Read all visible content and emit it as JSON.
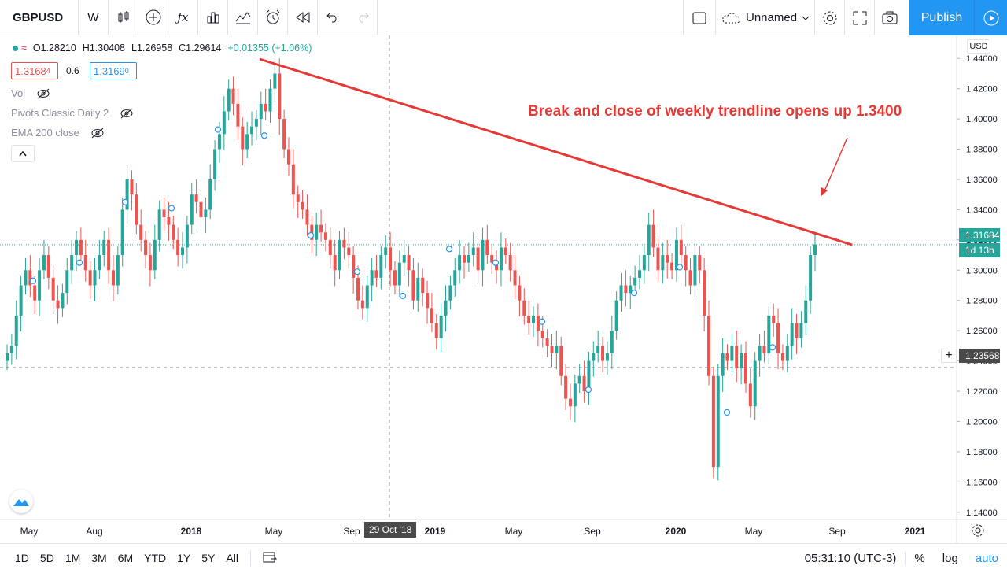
{
  "toolbar": {
    "symbol": "GBPUSD",
    "interval": "W",
    "layout_name": "Unnamed",
    "publish_label": "Publish",
    "icons": [
      "candles-icon",
      "add-indicator-icon",
      "fx-icon",
      "bar-chart-icon",
      "compare-icon",
      "alert-icon",
      "replay-icon",
      "undo-icon",
      "redo-icon",
      "fullscreen-square-icon",
      "cloud-icon",
      "settings-gear-icon",
      "fullscreen-icon",
      "camera-icon",
      "play-icon"
    ]
  },
  "legend": {
    "open": "O1.28210",
    "high": "H1.30408",
    "low": "L1.26958",
    "close": "C1.29614",
    "change": "+0.01355 (+1.06%)",
    "sell_price": "1.3168",
    "sell_price_sup": "4",
    "spread": "0.6",
    "buy_price": "1.3169",
    "buy_price_sup": "0",
    "indicators": [
      "Vol",
      "Pivots Classic Daily 2",
      "EMA 200 close"
    ]
  },
  "annotation": "Break and close of weekly trendline opens up 1.3400",
  "price_axis": {
    "currency": "USD",
    "ticks": [
      "1.44000",
      "1.42000",
      "1.40000",
      "1.38000",
      "1.36000",
      "1.34000",
      "1.32000",
      "1.30000",
      "1.28000",
      "1.26000",
      "1.24000",
      "1.22000",
      "1.20000",
      "1.18000",
      "1.16000",
      "1.14000"
    ],
    "current_price": "1.31684",
    "countdown": "1d 13h",
    "crosshair_price": "1.23568"
  },
  "time_axis": {
    "labels": [
      "May",
      "Aug",
      "2018",
      "May",
      "Sep",
      "2019",
      "May",
      "Sep",
      "2020",
      "May",
      "Sep",
      "2021"
    ],
    "crosshair_date": "29 Oct '18"
  },
  "bottombar": {
    "timeframes": [
      "1D",
      "5D",
      "1M",
      "3M",
      "6M",
      "YTD",
      "1Y",
      "5Y",
      "All"
    ],
    "clock": "05:31:10 (UTC-3)",
    "percent": "%",
    "log": "log",
    "auto": "auto"
  },
  "colors": {
    "up": "#26a69a",
    "down": "#ef5350",
    "trend": "#e53935",
    "accent": "#2196f3"
  },
  "chart_data": {
    "type": "candlestick",
    "symbol": "GBPUSD",
    "interval": "W",
    "ylim": [
      1.13,
      1.45
    ],
    "closes": [
      1.245,
      1.25,
      1.27,
      1.29,
      1.3,
      1.29,
      1.28,
      1.3,
      1.31,
      1.295,
      1.28,
      1.275,
      1.285,
      1.3,
      1.31,
      1.32,
      1.31,
      1.3,
      1.29,
      1.3,
      1.31,
      1.32,
      1.3,
      1.29,
      1.31,
      1.34,
      1.36,
      1.35,
      1.33,
      1.32,
      1.31,
      1.3,
      1.32,
      1.34,
      1.335,
      1.33,
      1.32,
      1.31,
      1.315,
      1.33,
      1.35,
      1.345,
      1.335,
      1.34,
      1.36,
      1.38,
      1.39,
      1.405,
      1.42,
      1.41,
      1.395,
      1.38,
      1.39,
      1.395,
      1.4,
      1.41,
      1.405,
      1.42,
      1.43,
      1.4,
      1.38,
      1.37,
      1.35,
      1.345,
      1.34,
      1.33,
      1.32,
      1.33,
      1.325,
      1.32,
      1.31,
      1.3,
      1.32,
      1.315,
      1.31,
      1.295,
      1.28,
      1.275,
      1.29,
      1.3,
      1.295,
      1.31,
      1.315,
      1.3,
      1.29,
      1.305,
      1.31,
      1.3,
      1.28,
      1.295,
      1.285,
      1.275,
      1.265,
      1.255,
      1.27,
      1.28,
      1.29,
      1.3,
      1.31,
      1.305,
      1.31,
      1.315,
      1.3,
      1.32,
      1.31,
      1.305,
      1.3,
      1.315,
      1.31,
      1.3,
      1.29,
      1.28,
      1.27,
      1.265,
      1.27,
      1.26,
      1.255,
      1.25,
      1.245,
      1.25,
      1.23,
      1.215,
      1.21,
      1.225,
      1.23,
      1.22,
      1.24,
      1.245,
      1.25,
      1.24,
      1.245,
      1.26,
      1.28,
      1.29,
      1.285,
      1.29,
      1.295,
      1.3,
      1.31,
      1.33,
      1.315,
      1.3,
      1.31,
      1.305,
      1.3,
      1.32,
      1.31,
      1.3,
      1.29,
      1.31,
      1.3,
      1.27,
      1.23,
      1.17,
      1.23,
      1.245,
      1.24,
      1.25,
      1.235,
      1.245,
      1.225,
      1.21,
      1.24,
      1.25,
      1.245,
      1.27,
      1.265,
      1.245,
      1.24,
      1.25,
      1.265,
      1.255,
      1.265,
      1.28,
      1.31,
      1.317
    ]
  }
}
